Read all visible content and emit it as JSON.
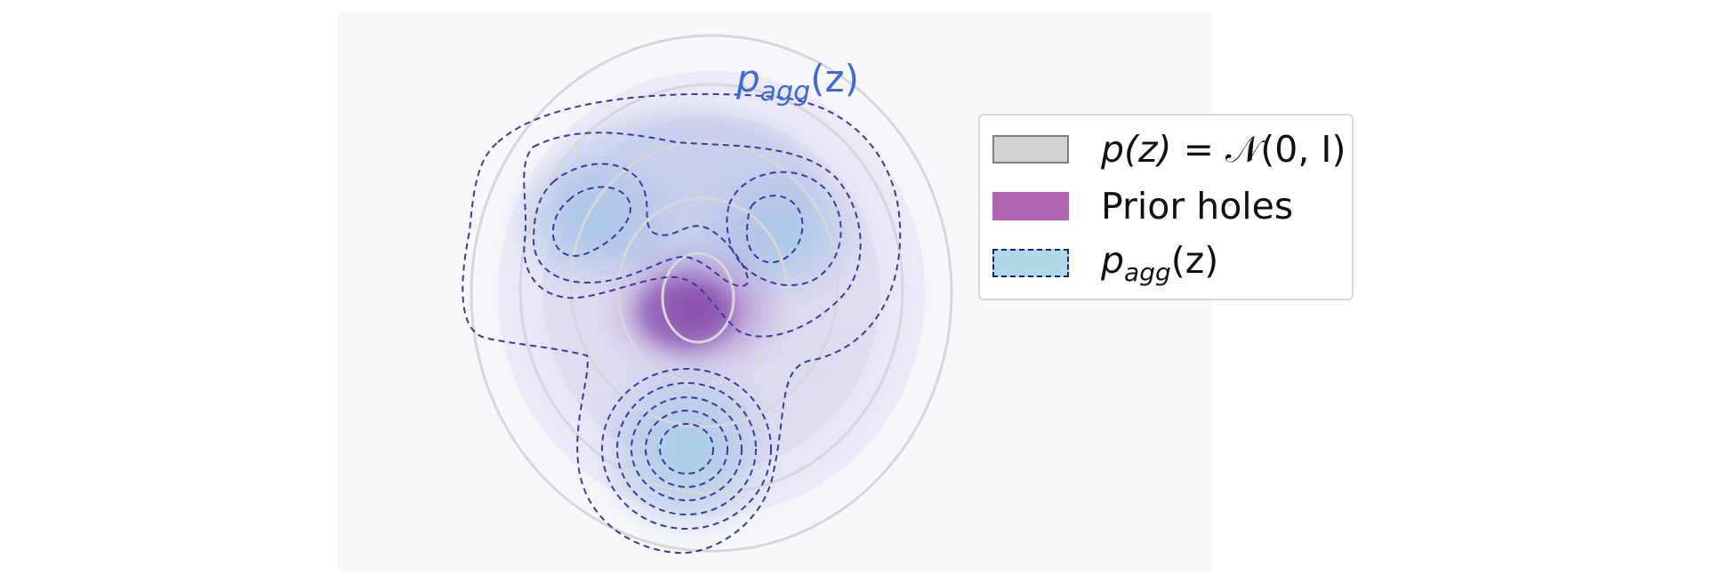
{
  "figure": {
    "curve_label": {
      "base": "p",
      "subscript": "agg",
      "arg": "(z)",
      "color": "#4169d6"
    }
  },
  "legend": {
    "items": [
      {
        "label_prefix": "p(z) = ",
        "label_symbol": "𝒩",
        "label_suffix": "(0, I)",
        "swatch_fill": "#d3d3d3",
        "swatch_border": "#808080",
        "swatch_style": "solid"
      },
      {
        "label": "Prior holes",
        "swatch_fill": "#b265b6",
        "swatch_border": "#b265b6",
        "swatch_style": "solid"
      },
      {
        "label_base": "p",
        "label_subscript": "agg",
        "label_arg": "(z)",
        "swatch_fill": "#add8e6",
        "swatch_border": "#1e1e7a",
        "swatch_style": "dashed"
      }
    ]
  },
  "colors": {
    "panel_bg": "#f8f8fb",
    "prior_ring": "#d8d8dc",
    "hole": "#8a50b0",
    "agg_fill": "#a9cfe8",
    "agg_contour": "#3a3aa0"
  }
}
